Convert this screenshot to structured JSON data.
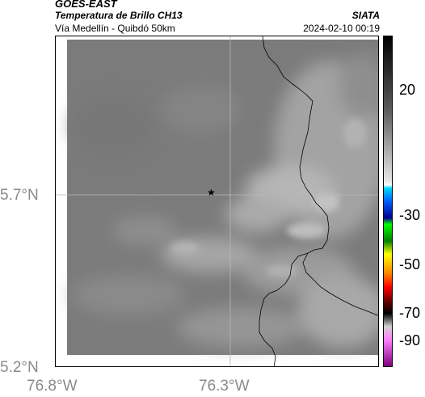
{
  "header": {
    "satellite": "GOES-EAST",
    "product": "Temperatura de Brillo CH13",
    "region": "Vía Medellín - Quibdó 50km",
    "organization": "SIATA",
    "timestamp": "2024-02-10 00:19"
  },
  "map": {
    "marker_icon": "star-icon",
    "y_axis_ticks": [
      "5.7°N",
      "5.2°N"
    ],
    "x_axis_ticks": [
      "76.8°W",
      "76.3°W"
    ]
  },
  "colorbar": {
    "ticks": [
      "20",
      "-30",
      "-50",
      "-70",
      "-90"
    ]
  }
}
